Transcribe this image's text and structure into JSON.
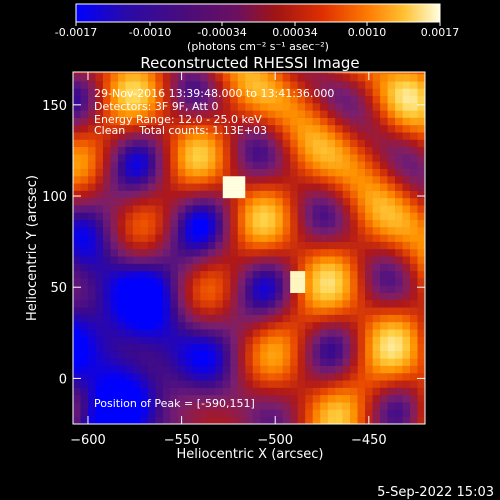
{
  "colorbar": {
    "ticks": [
      "-0.0017",
      "-0.0010",
      "-0.00034",
      "0.00034",
      "0.0010",
      "0.0017"
    ],
    "unit_label": "(photons cm⁻² s⁻¹ asec⁻²)",
    "range": [
      -0.0017,
      0.0017
    ]
  },
  "annotations": {
    "time_range": "29-Nov-2016 13:39:48.000 to 13:41:36.000",
    "detectors": "Detectors: 3F 9F, Att 0",
    "energy": "Energy Range: 12.0 - 25.0 keV",
    "clean": "Clean    Total counts: 1.13E+03",
    "peak": "Position of Peak = [-590,151]"
  },
  "footer": {
    "date": "5-Sep-2022 15:03"
  },
  "chart_data": {
    "type": "heatmap",
    "title": "Reconstructed RHESSI Image",
    "xlabel": "Heliocentric X (arcsec)",
    "ylabel": "Heliocentric Y (arcsec)",
    "xlim": [
      -608,
      -420
    ],
    "ylim": [
      -25,
      168
    ],
    "x_ticks": [
      -600,
      -550,
      -500,
      -450
    ],
    "y_ticks": [
      0,
      50,
      100,
      150
    ],
    "x_tick_labels": [
      "−600",
      "−550",
      "−500",
      "−450"
    ],
    "y_tick_labels": [
      "0",
      "50",
      "100",
      "150"
    ],
    "pixel_size_arcsec": 4,
    "colormap": [
      "#0000ff",
      "#3b0a8c",
      "#7a1f6e",
      "#b01818",
      "#e84800",
      "#ff9000",
      "#ffd040",
      "#ffffe0"
    ],
    "peak_position": [
      -590,
      151
    ]
  }
}
